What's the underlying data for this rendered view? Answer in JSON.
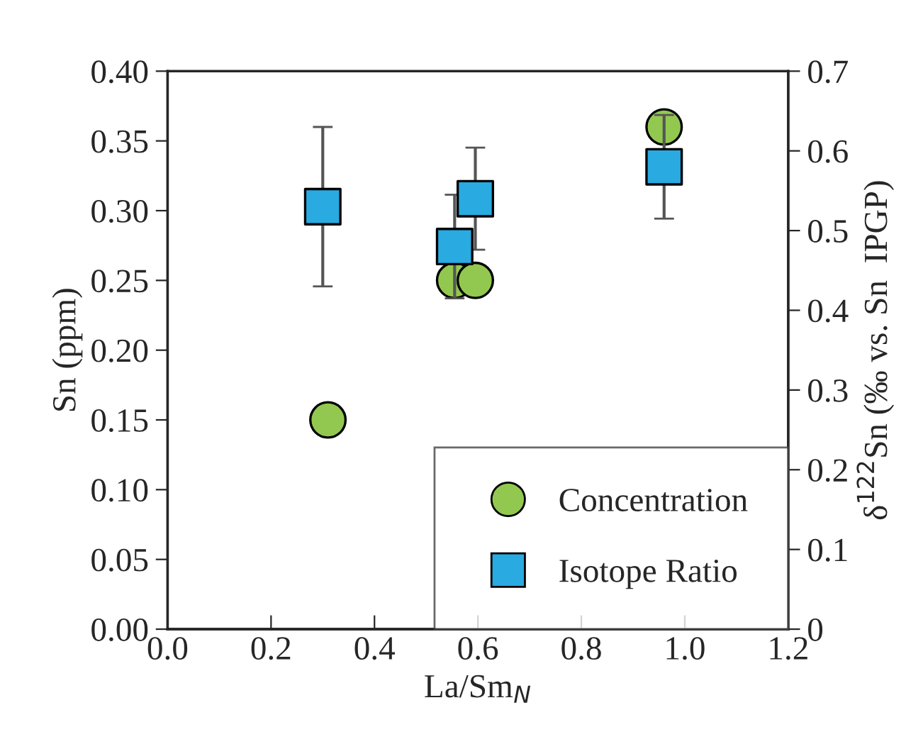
{
  "chart_data": {
    "type": "scatter",
    "xlabel": "La/Sm$_{N}$",
    "ylabel": "Sn (ppm)",
    "y2label": "δ$^{122}$Sn (‰ vs. Sn  IPGP)",
    "xlim": [
      0,
      1.2
    ],
    "xticks": [
      {
        "value": 0,
        "label": "0.0"
      },
      {
        "value": 0.2,
        "label": "0.2"
      },
      {
        "value": 0.4,
        "label": "0.4"
      },
      {
        "value": 0.6,
        "label": "0.6"
      },
      {
        "value": 0.8,
        "label": "0.8"
      },
      {
        "value": 1.0,
        "label": "1.0"
      },
      {
        "value": 1.2,
        "label": "1.2"
      }
    ],
    "ylim": [
      0,
      0.4
    ],
    "yticks": [
      {
        "value": 0,
        "label": "0.00"
      },
      {
        "value": 0.05,
        "label": "0.05"
      },
      {
        "value": 0.1,
        "label": "0.10"
      },
      {
        "value": 0.15,
        "label": "0.15"
      },
      {
        "value": 0.2,
        "label": "0.20"
      },
      {
        "value": 0.25,
        "label": "0.25"
      },
      {
        "value": 0.3,
        "label": "0.30"
      },
      {
        "value": 0.35,
        "label": "0.35"
      },
      {
        "value": 0.4,
        "label": "0.40"
      }
    ],
    "y2lim": [
      0,
      0.7
    ],
    "y2ticks": [
      0,
      0.1,
      0.2,
      0.3,
      0.4,
      0.5,
      0.6,
      0.7
    ],
    "legend": "bottom right",
    "grid": false,
    "series": [
      {
        "name": "Concentration",
        "color": "#92c850",
        "marker": "circle",
        "x": [
          0.31,
          0.555,
          0.595,
          0.96
        ],
        "values": [
          0.15,
          0.25,
          0.25,
          0.36
        ]
      },
      {
        "name": "Isotope Ratio",
        "color": "#29aae1",
        "marker": "square",
        "axis": "y2",
        "x": [
          0.3,
          0.555,
          0.595,
          0.96
        ],
        "values": [
          0.53,
          0.48,
          0.54,
          0.58
        ],
        "errors": [
          0.1,
          0.065,
          0.064,
          0.065
        ]
      }
    ]
  }
}
